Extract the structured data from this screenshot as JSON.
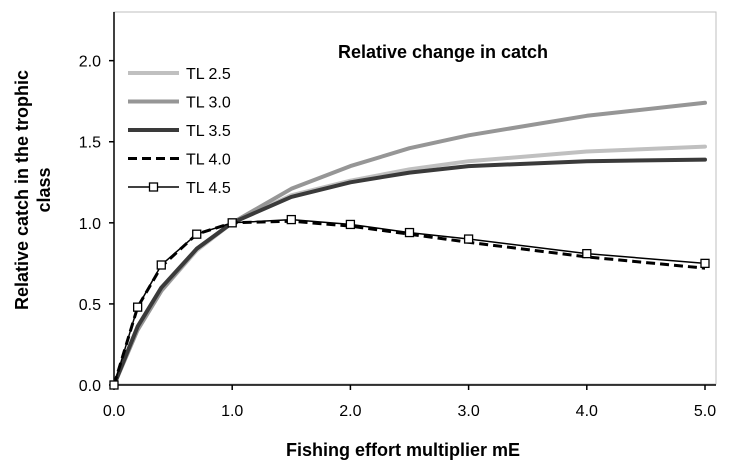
{
  "chart_data": {
    "type": "line",
    "title": "Relative change in catch",
    "xlabel": "Fishing effort multiplier mE",
    "ylabel_lines": [
      "Relative catch in the trophic",
      "class"
    ],
    "xlim": [
      0,
      5
    ],
    "ylim": [
      0,
      2.3
    ],
    "x_ticks": [
      "0.0",
      "1.0",
      "2.0",
      "3.0",
      "4.0",
      "5.0"
    ],
    "y_ticks": [
      "0.0",
      "0.5",
      "1.0",
      "1.5",
      "2.0"
    ],
    "legend_position": "top-left",
    "grid": false,
    "x": [
      0,
      0.2,
      0.4,
      0.7,
      1.0,
      1.5,
      2.0,
      2.5,
      3.0,
      4.0,
      5.0
    ],
    "series": [
      {
        "name": "TL 2.5",
        "color": "#c0c0c0",
        "style": "solid-thick",
        "values": [
          0,
          0.34,
          0.58,
          0.83,
          1.0,
          1.17,
          1.26,
          1.33,
          1.38,
          1.44,
          1.47
        ]
      },
      {
        "name": "TL 3.0",
        "color": "#969696",
        "style": "solid-thick",
        "values": [
          0,
          0.34,
          0.58,
          0.84,
          1.0,
          1.21,
          1.35,
          1.46,
          1.54,
          1.66,
          1.74
        ]
      },
      {
        "name": "TL 3.5",
        "color": "#3a3a3a",
        "style": "solid-thick",
        "values": [
          0,
          0.36,
          0.6,
          0.84,
          1.0,
          1.16,
          1.25,
          1.31,
          1.35,
          1.38,
          1.39
        ]
      },
      {
        "name": "TL 4.0",
        "color": "#000000",
        "style": "dashed",
        "values": [
          0,
          0.48,
          0.73,
          0.93,
          1.0,
          1.01,
          0.98,
          0.93,
          0.88,
          0.79,
          0.72
        ]
      },
      {
        "name": "TL 4.5",
        "color": "#000000",
        "style": "thin-square-markers",
        "values": [
          0,
          0.48,
          0.74,
          0.93,
          1.0,
          1.02,
          0.99,
          0.94,
          0.9,
          0.81,
          0.75
        ]
      }
    ]
  }
}
